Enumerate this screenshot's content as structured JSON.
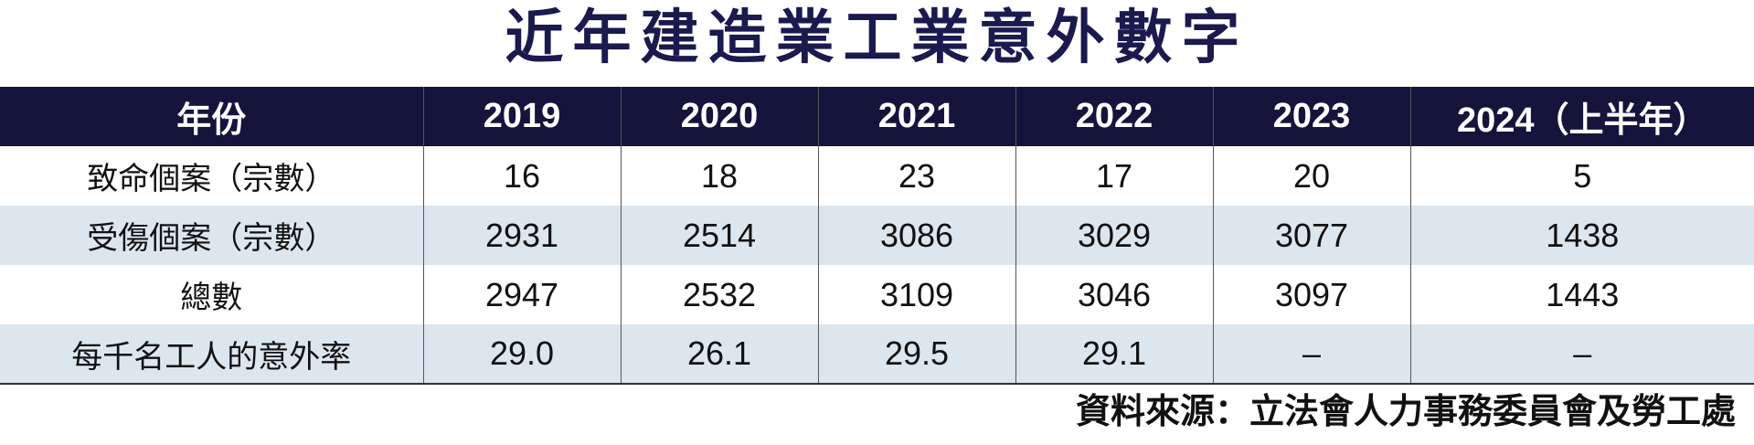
{
  "title": "近年建造業工業意外數字",
  "table": {
    "header": {
      "label": "年份",
      "years": [
        "2019",
        "2020",
        "2021",
        "2022",
        "2023",
        "2024（上半年）"
      ]
    },
    "rows": [
      {
        "label": "致命個案（宗數）",
        "values": [
          "16",
          "18",
          "23",
          "17",
          "20",
          "5"
        ]
      },
      {
        "label": "受傷個案（宗數）",
        "values": [
          "2931",
          "2514",
          "3086",
          "3029",
          "3077",
          "1438"
        ]
      },
      {
        "label": "總數",
        "values": [
          "2947",
          "2532",
          "3109",
          "3046",
          "3097",
          "1443"
        ]
      },
      {
        "label": "每千名工人的意外率",
        "values": [
          "29.0",
          "26.1",
          "29.5",
          "29.1",
          "–",
          "–"
        ]
      }
    ]
  },
  "source": "資料來源：立法會人力事務委員會及勞工處",
  "colors": {
    "header_background": "#14143c",
    "title": "#1a1a4e",
    "shaded_row": "#dce6ef"
  }
}
